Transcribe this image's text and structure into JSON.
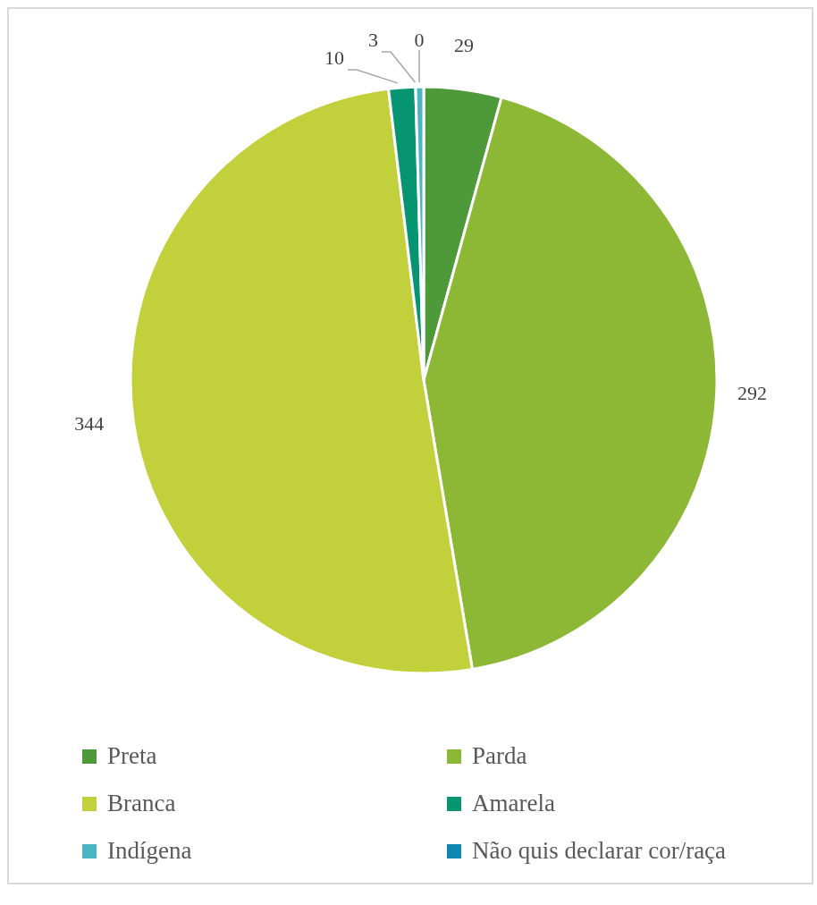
{
  "chart_data": {
    "type": "pie",
    "categories": [
      "Preta",
      "Parda",
      "Branca",
      "Amarela",
      "Indígena",
      "Não quis declarar cor/raça"
    ],
    "values": [
      29,
      292,
      344,
      10,
      3,
      0
    ],
    "colors": [
      "#4e9a3a",
      "#8cb836",
      "#c2d03b",
      "#079470",
      "#4bb5c4",
      "#0f87b3"
    ],
    "value_labels": [
      "29",
      "292",
      "344",
      "10",
      "3",
      "0"
    ],
    "legend": "bottom"
  }
}
